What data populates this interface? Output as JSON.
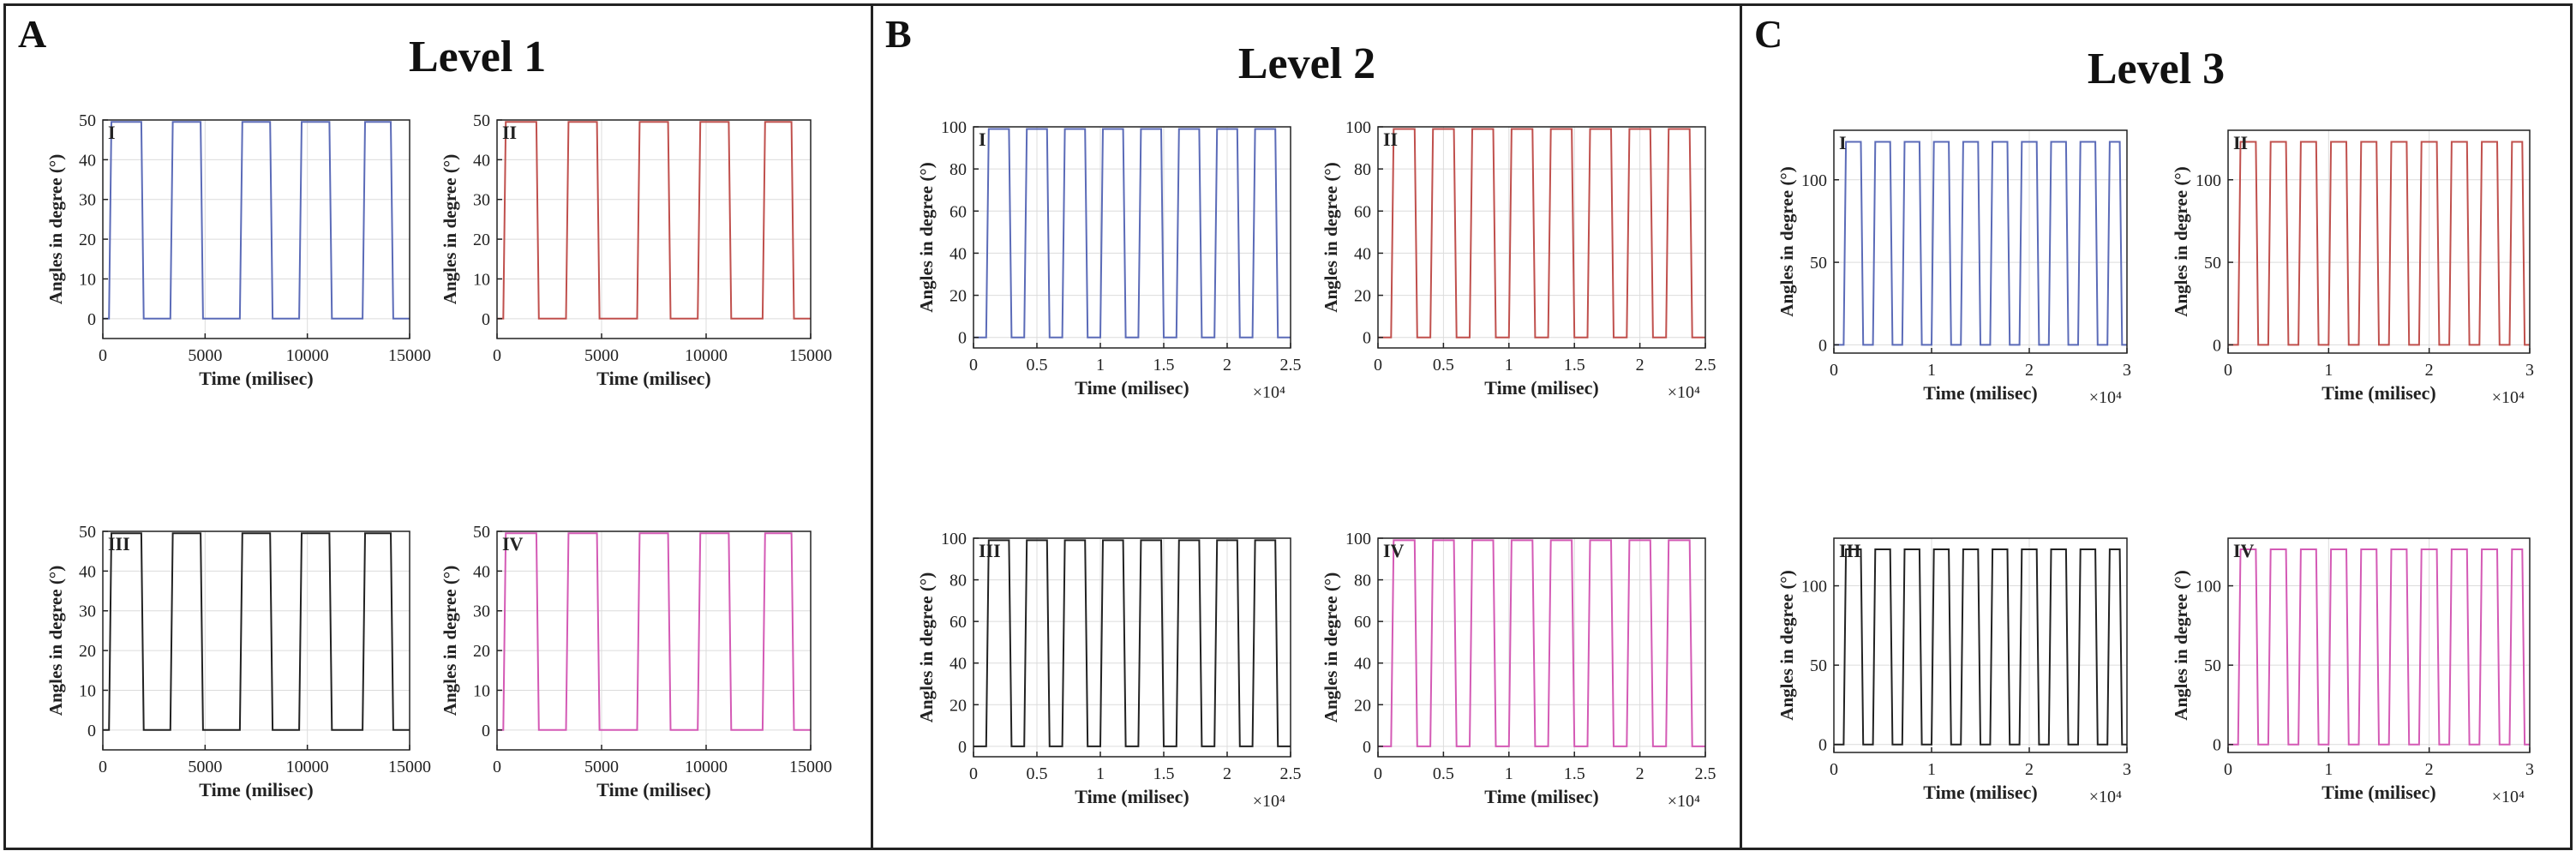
{
  "panels": [
    {
      "letter": "A",
      "title": "Level 1"
    },
    {
      "letter": "B",
      "title": "Level 2"
    },
    {
      "letter": "C",
      "title": "Level 3"
    }
  ],
  "chart_data": [
    {
      "type": "line",
      "panel": "A",
      "label": "I",
      "xlabel": "Time (milisec)",
      "ylabel": "Angles in degree (°)",
      "xlim": [
        0,
        15000
      ],
      "ylim": [
        -5,
        50
      ],
      "xticks": [
        0,
        5000,
        10000,
        15000
      ],
      "yticks": [
        0,
        10,
        20,
        30,
        40,
        50
      ],
      "x_multiplier": "",
      "color": "#5b6bb8",
      "grid": true,
      "series": [
        {
          "values_description": "",
          "plateau": 49.5,
          "baseline": 0,
          "cycles": [
            [
              300,
              2000
            ],
            [
              3300,
              4900
            ],
            [
              6700,
              8300
            ],
            [
              9600,
              11200
            ],
            [
              12700,
              14200
            ]
          ]
        }
      ]
    },
    {
      "type": "line",
      "panel": "A",
      "label": "II",
      "xlabel": "Time (milisec)",
      "ylabel": "Angles in degree (°)",
      "xlim": [
        0,
        15000
      ],
      "ylim": [
        -5,
        50
      ],
      "xticks": [
        0,
        5000,
        10000,
        15000
      ],
      "yticks": [
        0,
        10,
        20,
        30,
        40,
        50
      ],
      "x_multiplier": "",
      "color": "#c0504d",
      "grid": true,
      "series": [
        {
          "values_description": "",
          "plateau": 49.5,
          "baseline": 0,
          "cycles": [
            [
              300,
              2000
            ],
            [
              3300,
              4900
            ],
            [
              6700,
              8300
            ],
            [
              9600,
              11200
            ],
            [
              12700,
              14200
            ]
          ]
        }
      ]
    },
    {
      "type": "line",
      "panel": "A",
      "label": "III",
      "xlabel": "Time (milisec)",
      "ylabel": "Angles in degree (°)",
      "xlim": [
        0,
        15000
      ],
      "ylim": [
        -5,
        50
      ],
      "xticks": [
        0,
        5000,
        10000,
        15000
      ],
      "yticks": [
        0,
        10,
        20,
        30,
        40,
        50
      ],
      "x_multiplier": "",
      "color": "#222222",
      "grid": true,
      "series": [
        {
          "values_description": "",
          "plateau": 49.5,
          "baseline": 0,
          "cycles": [
            [
              300,
              2000
            ],
            [
              3300,
              4900
            ],
            [
              6700,
              8300
            ],
            [
              9600,
              11200
            ],
            [
              12700,
              14200
            ]
          ]
        }
      ]
    },
    {
      "type": "line",
      "panel": "A",
      "label": "IV",
      "xlabel": "Time (milisec)",
      "ylabel": "Angles in degree (°)",
      "xlim": [
        0,
        15000
      ],
      "ylim": [
        -5,
        50
      ],
      "xticks": [
        0,
        5000,
        10000,
        15000
      ],
      "yticks": [
        0,
        10,
        20,
        30,
        40,
        50
      ],
      "x_multiplier": "",
      "color": "#d45ab5",
      "grid": true,
      "series": [
        {
          "values_description": "",
          "plateau": 49.5,
          "baseline": 0,
          "cycles": [
            [
              300,
              2000
            ],
            [
              3300,
              4900
            ],
            [
              6700,
              8300
            ],
            [
              9600,
              11200
            ],
            [
              12700,
              14200
            ]
          ]
        }
      ]
    },
    {
      "type": "line",
      "panel": "B",
      "label": "I",
      "xlabel": "Time (milisec)",
      "ylabel": "Angles in degree (°)",
      "xlim": [
        0,
        2.5
      ],
      "ylim": [
        -5,
        100
      ],
      "xticks": [
        0,
        0.5,
        1,
        1.5,
        2,
        2.5
      ],
      "yticks": [
        0,
        20,
        40,
        60,
        80,
        100
      ],
      "x_multiplier": "×10⁴",
      "color": "#5b6bb8",
      "grid": true,
      "series": [
        {
          "plateau": 99,
          "baseline": 0,
          "cycles": [
            [
              0.1,
              0.3
            ],
            [
              0.4,
              0.6
            ],
            [
              0.7,
              0.9
            ],
            [
              1.0,
              1.2
            ],
            [
              1.3,
              1.5
            ],
            [
              1.6,
              1.8
            ],
            [
              1.9,
              2.1
            ],
            [
              2.2,
              2.4
            ]
          ]
        }
      ]
    },
    {
      "type": "line",
      "panel": "B",
      "label": "II",
      "xlabel": "Time (milisec)",
      "ylabel": "Angles in degree (°)",
      "xlim": [
        0,
        2.5
      ],
      "ylim": [
        -5,
        100
      ],
      "xticks": [
        0,
        0.5,
        1,
        1.5,
        2,
        2.5
      ],
      "yticks": [
        0,
        20,
        40,
        60,
        80,
        100
      ],
      "x_multiplier": "×10⁴",
      "color": "#c0504d",
      "grid": true,
      "series": [
        {
          "plateau": 99,
          "baseline": 0,
          "cycles": [
            [
              0.1,
              0.3
            ],
            [
              0.4,
              0.6
            ],
            [
              0.7,
              0.9
            ],
            [
              1.0,
              1.2
            ],
            [
              1.3,
              1.5
            ],
            [
              1.6,
              1.8
            ],
            [
              1.9,
              2.1
            ],
            [
              2.2,
              2.4
            ]
          ]
        }
      ]
    },
    {
      "type": "line",
      "panel": "B",
      "label": "III",
      "xlabel": "Time (milisec)",
      "ylabel": "Angles in degree (°)",
      "xlim": [
        0,
        2.5
      ],
      "ylim": [
        -5,
        100
      ],
      "xticks": [
        0,
        0.5,
        1,
        1.5,
        2,
        2.5
      ],
      "yticks": [
        0,
        20,
        40,
        60,
        80,
        100
      ],
      "x_multiplier": "×10⁴",
      "color": "#222222",
      "grid": true,
      "series": [
        {
          "plateau": 99,
          "baseline": 0,
          "cycles": [
            [
              0.1,
              0.3
            ],
            [
              0.4,
              0.6
            ],
            [
              0.7,
              0.9
            ],
            [
              1.0,
              1.2
            ],
            [
              1.3,
              1.5
            ],
            [
              1.6,
              1.8
            ],
            [
              1.9,
              2.1
            ],
            [
              2.2,
              2.4
            ]
          ]
        }
      ]
    },
    {
      "type": "line",
      "panel": "B",
      "label": "IV",
      "xlabel": "Time (milisec)",
      "ylabel": "Angles in degree (°)",
      "xlim": [
        0,
        2.5
      ],
      "ylim": [
        -5,
        100
      ],
      "xticks": [
        0,
        0.5,
        1,
        1.5,
        2,
        2.5
      ],
      "yticks": [
        0,
        20,
        40,
        60,
        80,
        100
      ],
      "x_multiplier": "×10⁴",
      "color": "#d45ab5",
      "grid": true,
      "series": [
        {
          "plateau": 99,
          "baseline": 0,
          "cycles": [
            [
              0.1,
              0.3
            ],
            [
              0.4,
              0.6
            ],
            [
              0.7,
              0.9
            ],
            [
              1.0,
              1.2
            ],
            [
              1.3,
              1.5
            ],
            [
              1.6,
              1.8
            ],
            [
              1.9,
              2.1
            ],
            [
              2.2,
              2.4
            ]
          ]
        }
      ]
    },
    {
      "type": "line",
      "panel": "C",
      "label": "I",
      "xlabel": "Time (milisec)",
      "ylabel": "Angles in degree (°)",
      "xlim": [
        0,
        3
      ],
      "ylim": [
        -5,
        130
      ],
      "xticks": [
        0,
        1,
        2,
        3
      ],
      "yticks": [
        0,
        50,
        100
      ],
      "x_multiplier": "×10⁴",
      "color": "#5b6bb8",
      "grid": true,
      "series": [
        {
          "plateau": 123,
          "baseline": 0,
          "cycles": [
            [
              0.1,
              0.3
            ],
            [
              0.4,
              0.6
            ],
            [
              0.7,
              0.9
            ],
            [
              1.0,
              1.2
            ],
            [
              1.3,
              1.5
            ],
            [
              1.6,
              1.8
            ],
            [
              1.9,
              2.1
            ],
            [
              2.2,
              2.4
            ],
            [
              2.5,
              2.7
            ],
            [
              2.8,
              2.95
            ]
          ]
        }
      ]
    },
    {
      "type": "line",
      "panel": "C",
      "label": "II",
      "xlabel": "Time (milisec)",
      "ylabel": "Angles in degree (°)",
      "xlim": [
        0,
        3
      ],
      "ylim": [
        -5,
        130
      ],
      "xticks": [
        0,
        1,
        2,
        3
      ],
      "yticks": [
        0,
        50,
        100
      ],
      "x_multiplier": "×10⁴",
      "color": "#c0504d",
      "grid": true,
      "series": [
        {
          "plateau": 123,
          "baseline": 0,
          "cycles": [
            [
              0.1,
              0.3
            ],
            [
              0.4,
              0.6
            ],
            [
              0.7,
              0.9
            ],
            [
              1.0,
              1.2
            ],
            [
              1.3,
              1.5
            ],
            [
              1.6,
              1.8
            ],
            [
              1.9,
              2.1
            ],
            [
              2.2,
              2.4
            ],
            [
              2.5,
              2.7
            ],
            [
              2.8,
              2.95
            ]
          ]
        }
      ]
    },
    {
      "type": "line",
      "panel": "C",
      "label": "III",
      "xlabel": "Time (milisec)",
      "ylabel": "Angles in degree (°)",
      "xlim": [
        0,
        3
      ],
      "ylim": [
        -5,
        130
      ],
      "xticks": [
        0,
        1,
        2,
        3
      ],
      "yticks": [
        0,
        50,
        100
      ],
      "x_multiplier": "×10⁴",
      "color": "#222222",
      "grid": true,
      "series": [
        {
          "plateau": 123,
          "baseline": 0,
          "cycles": [
            [
              0.1,
              0.3
            ],
            [
              0.4,
              0.6
            ],
            [
              0.7,
              0.9
            ],
            [
              1.0,
              1.2
            ],
            [
              1.3,
              1.5
            ],
            [
              1.6,
              1.8
            ],
            [
              1.9,
              2.1
            ],
            [
              2.2,
              2.4
            ],
            [
              2.5,
              2.7
            ],
            [
              2.8,
              2.95
            ]
          ]
        }
      ]
    },
    {
      "type": "line",
      "panel": "C",
      "label": "IV",
      "xlabel": "Time (milisec)",
      "ylabel": "Angles in degree (°)",
      "xlim": [
        0,
        3
      ],
      "ylim": [
        -5,
        130
      ],
      "xticks": [
        0,
        1,
        2,
        3
      ],
      "yticks": [
        0,
        50,
        100
      ],
      "x_multiplier": "×10⁴",
      "color": "#d45ab5",
      "grid": true,
      "series": [
        {
          "plateau": 123,
          "baseline": 0,
          "cycles": [
            [
              0.1,
              0.3
            ],
            [
              0.4,
              0.6
            ],
            [
              0.7,
              0.9
            ],
            [
              1.0,
              1.2
            ],
            [
              1.3,
              1.5
            ],
            [
              1.6,
              1.8
            ],
            [
              1.9,
              2.1
            ],
            [
              2.2,
              2.4
            ],
            [
              2.5,
              2.7
            ],
            [
              2.8,
              2.95
            ]
          ]
        }
      ]
    }
  ]
}
